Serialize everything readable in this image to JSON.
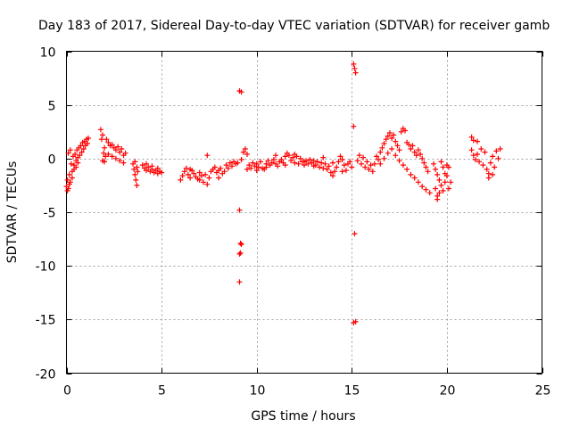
{
  "chart_data": {
    "type": "scatter",
    "title": "Day 183 of 2017, Sidereal Day-to-day VTEC variation (SDTVAR) for receiver gamb",
    "xlabel": "GPS time / hours",
    "ylabel": "SDTVAR / TECUs",
    "xlim": [
      0,
      25
    ],
    "ylim": [
      -20,
      10
    ],
    "x_ticks": [
      0,
      5,
      10,
      15,
      20,
      25
    ],
    "y_ticks": [
      -20,
      -15,
      -10,
      -5,
      0,
      5,
      10
    ],
    "x_tick_labels": [
      "0",
      "5",
      "10",
      "15",
      "20",
      "25"
    ],
    "y_tick_labels": [
      "-20",
      "-15",
      "-10",
      "-5",
      "0",
      "5",
      "10"
    ],
    "grid": true,
    "marker": "+",
    "marker_color": "#ff0000",
    "series": [
      {
        "name": "SDTVAR",
        "points": [
          [
            0.0,
            -2.6
          ],
          [
            0.05,
            -2.0
          ],
          [
            0.1,
            -2.8
          ],
          [
            0.15,
            -1.5
          ],
          [
            0.2,
            -2.2
          ],
          [
            0.25,
            -0.5
          ],
          [
            0.3,
            -1.2
          ],
          [
            0.35,
            0.2
          ],
          [
            0.4,
            -0.6
          ],
          [
            0.45,
            0.4
          ],
          [
            0.5,
            -0.2
          ],
          [
            0.55,
            0.8
          ],
          [
            0.6,
            0.1
          ],
          [
            0.65,
            1.0
          ],
          [
            0.7,
            0.3
          ],
          [
            0.75,
            1.2
          ],
          [
            0.8,
            0.6
          ],
          [
            0.85,
            1.5
          ],
          [
            0.9,
            0.9
          ],
          [
            0.95,
            1.6
          ],
          [
            1.0,
            1.2
          ],
          [
            1.05,
            1.8
          ],
          [
            1.1,
            1.4
          ],
          [
            1.15,
            1.9
          ],
          [
            0.1,
            0.5
          ],
          [
            0.2,
            0.8
          ],
          [
            0.3,
            -1.8
          ],
          [
            0.4,
            -1.0
          ],
          [
            0.5,
            -0.8
          ],
          [
            0.6,
            -0.4
          ],
          [
            0.05,
            -3.0
          ],
          [
            0.15,
            -2.4
          ],
          [
            1.8,
            2.7
          ],
          [
            1.85,
            1.8
          ],
          [
            1.9,
            2.2
          ],
          [
            1.95,
            0.5
          ],
          [
            2.0,
            1.0
          ],
          [
            2.05,
            0.2
          ],
          [
            2.1,
            1.8
          ],
          [
            2.2,
            1.5
          ],
          [
            2.3,
            1.2
          ],
          [
            2.4,
            1.3
          ],
          [
            2.5,
            1.0
          ],
          [
            2.6,
            0.8
          ],
          [
            2.7,
            1.1
          ],
          [
            2.8,
            0.6
          ],
          [
            2.9,
            0.9
          ],
          [
            3.0,
            0.3
          ],
          [
            3.1,
            0.5
          ],
          [
            1.9,
            -0.2
          ],
          [
            2.0,
            -0.3
          ],
          [
            2.2,
            0.4
          ],
          [
            2.4,
            0.2
          ],
          [
            2.6,
            0.0
          ],
          [
            2.8,
            -0.2
          ],
          [
            3.0,
            -0.4
          ],
          [
            3.5,
            -0.5
          ],
          [
            3.55,
            -1.0
          ],
          [
            3.6,
            -1.5
          ],
          [
            3.65,
            -2.0
          ],
          [
            3.7,
            -2.5
          ],
          [
            3.75,
            -1.2
          ],
          [
            3.6,
            -0.3
          ],
          [
            3.7,
            -0.8
          ],
          [
            4.0,
            -0.6
          ],
          [
            4.1,
            -0.9
          ],
          [
            4.2,
            -1.1
          ],
          [
            4.3,
            -0.8
          ],
          [
            4.4,
            -1.2
          ],
          [
            4.5,
            -1.0
          ],
          [
            4.6,
            -1.3
          ],
          [
            4.7,
            -1.1
          ],
          [
            4.8,
            -1.4
          ],
          [
            4.9,
            -1.2
          ],
          [
            5.0,
            -1.3
          ],
          [
            4.2,
            -0.5
          ],
          [
            4.5,
            -0.7
          ],
          [
            4.8,
            -0.9
          ],
          [
            6.0,
            -2.0
          ],
          [
            6.1,
            -1.6
          ],
          [
            6.2,
            -1.2
          ],
          [
            6.3,
            -0.9
          ],
          [
            6.4,
            -1.5
          ],
          [
            6.5,
            -1.8
          ],
          [
            6.6,
            -1.1
          ],
          [
            6.7,
            -1.4
          ],
          [
            6.8,
            -1.7
          ],
          [
            6.9,
            -1.9
          ],
          [
            7.0,
            -1.3
          ],
          [
            7.1,
            -1.6
          ],
          [
            7.2,
            -2.2
          ],
          [
            7.3,
            -1.5
          ],
          [
            7.4,
            -2.4
          ],
          [
            7.5,
            -1.8
          ],
          [
            7.6,
            -1.2
          ],
          [
            7.7,
            -1.0
          ],
          [
            7.8,
            -0.8
          ],
          [
            7.9,
            -1.3
          ],
          [
            8.0,
            -1.1
          ],
          [
            8.1,
            -0.9
          ],
          [
            8.2,
            -1.4
          ],
          [
            8.3,
            -1.2
          ],
          [
            8.4,
            -0.6
          ],
          [
            8.5,
            -0.9
          ],
          [
            8.6,
            -0.4
          ],
          [
            8.7,
            -0.7
          ],
          [
            8.8,
            -0.3
          ],
          [
            8.9,
            -0.5
          ],
          [
            9.0,
            -0.4
          ],
          [
            7.4,
            0.3
          ],
          [
            6.5,
            -1.0
          ],
          [
            7.0,
            -2.0
          ],
          [
            8.0,
            -1.8
          ],
          [
            9.1,
            6.3
          ],
          [
            9.2,
            6.2
          ],
          [
            9.1,
            -4.8
          ],
          [
            9.15,
            -7.9
          ],
          [
            9.2,
            -8.0
          ],
          [
            9.1,
            -8.9
          ],
          [
            9.15,
            -8.8
          ],
          [
            9.1,
            -11.5
          ],
          [
            9.2,
            -0.1
          ],
          [
            9.3,
            0.6
          ],
          [
            9.4,
            0.9
          ],
          [
            9.5,
            0.4
          ],
          [
            9.6,
            -0.6
          ],
          [
            9.7,
            -0.9
          ],
          [
            9.8,
            -0.4
          ],
          [
            9.9,
            -0.7
          ],
          [
            10.0,
            -1.1
          ],
          [
            10.1,
            -0.8
          ],
          [
            10.2,
            -0.3
          ],
          [
            10.3,
            -0.9
          ],
          [
            10.4,
            -1.0
          ],
          [
            10.5,
            -0.5
          ],
          [
            10.6,
            -0.2
          ],
          [
            10.7,
            -0.6
          ],
          [
            10.8,
            -0.4
          ],
          [
            10.9,
            -0.1
          ],
          [
            11.0,
            -0.5
          ],
          [
            11.1,
            -0.7
          ],
          [
            11.2,
            -0.3
          ],
          [
            11.3,
            -0.1
          ],
          [
            11.4,
            -0.4
          ],
          [
            11.5,
            0.2
          ],
          [
            11.6,
            0.5
          ],
          [
            11.7,
            0.3
          ],
          [
            11.8,
            -0.2
          ],
          [
            11.9,
            0.1
          ],
          [
            12.0,
            -0.4
          ],
          [
            12.1,
            0.2
          ],
          [
            12.2,
            -0.5
          ],
          [
            12.3,
            0.0
          ],
          [
            12.4,
            -0.3
          ],
          [
            12.5,
            -0.6
          ],
          [
            12.6,
            -0.2
          ],
          [
            12.7,
            -0.5
          ],
          [
            12.8,
            -0.1
          ],
          [
            12.9,
            -0.4
          ],
          [
            13.0,
            -0.2
          ],
          [
            13.1,
            -0.6
          ],
          [
            13.2,
            -0.3
          ],
          [
            13.3,
            -0.8
          ],
          [
            13.4,
            -0.4
          ],
          [
            13.5,
            0.1
          ],
          [
            13.6,
            -0.5
          ],
          [
            13.7,
            -1.0
          ],
          [
            13.8,
            -0.7
          ],
          [
            13.9,
            -1.3
          ],
          [
            14.0,
            -1.6
          ],
          [
            14.1,
            -1.2
          ],
          [
            14.2,
            -0.8
          ],
          [
            14.3,
            -0.3
          ],
          [
            14.4,
            0.2
          ],
          [
            14.5,
            -0.1
          ],
          [
            14.6,
            -0.6
          ],
          [
            14.7,
            -1.1
          ],
          [
            14.8,
            -0.5
          ],
          [
            14.9,
            -0.3
          ],
          [
            15.0,
            -0.8
          ],
          [
            9.5,
            -1.0
          ],
          [
            10.0,
            -0.5
          ],
          [
            10.5,
            -0.8
          ],
          [
            11.0,
            0.3
          ],
          [
            11.5,
            -0.6
          ],
          [
            12.0,
            0.4
          ],
          [
            12.5,
            -0.3
          ],
          [
            13.0,
            -0.7
          ],
          [
            13.5,
            -0.9
          ],
          [
            14.0,
            -0.4
          ],
          [
            14.5,
            -1.2
          ],
          [
            15.1,
            8.8
          ],
          [
            15.15,
            8.4
          ],
          [
            15.2,
            8.0
          ],
          [
            15.1,
            3.0
          ],
          [
            15.15,
            -7.0
          ],
          [
            15.1,
            -15.3
          ],
          [
            15.2,
            -15.2
          ],
          [
            15.3,
            -0.2
          ],
          [
            15.4,
            0.3
          ],
          [
            15.5,
            -0.5
          ],
          [
            15.6,
            0.1
          ],
          [
            15.7,
            -0.8
          ],
          [
            15.8,
            -0.3
          ],
          [
            15.9,
            -1.0
          ],
          [
            16.0,
            -0.6
          ],
          [
            16.1,
            -1.2
          ],
          [
            16.2,
            -0.5
          ],
          [
            16.3,
            0.2
          ],
          [
            16.4,
            -0.1
          ],
          [
            16.5,
            0.6
          ],
          [
            16.6,
            1.0
          ],
          [
            16.7,
            1.4
          ],
          [
            16.8,
            1.8
          ],
          [
            16.9,
            2.1
          ],
          [
            17.0,
            2.4
          ],
          [
            17.1,
            1.9
          ],
          [
            17.2,
            2.2
          ],
          [
            17.3,
            1.6
          ],
          [
            17.4,
            1.2
          ],
          [
            17.5,
            0.8
          ],
          [
            17.6,
            2.5
          ],
          [
            17.7,
            2.8
          ],
          [
            17.8,
            2.6
          ],
          [
            17.9,
            1.5
          ],
          [
            18.0,
            1.3
          ],
          [
            18.1,
            0.9
          ],
          [
            18.2,
            1.2
          ],
          [
            18.3,
            0.6
          ],
          [
            18.4,
            0.3
          ],
          [
            18.5,
            0.8
          ],
          [
            18.6,
            0.4
          ],
          [
            18.7,
            0.0
          ],
          [
            18.8,
            -0.4
          ],
          [
            18.9,
            -0.8
          ],
          [
            19.0,
            -1.2
          ],
          [
            16.5,
            -0.5
          ],
          [
            16.7,
            0.0
          ],
          [
            16.9,
            0.5
          ],
          [
            17.1,
            0.9
          ],
          [
            17.3,
            0.3
          ],
          [
            17.5,
            -0.2
          ],
          [
            17.7,
            -0.6
          ],
          [
            17.9,
            -1.0
          ],
          [
            18.1,
            -1.5
          ],
          [
            18.3,
            -1.8
          ],
          [
            18.5,
            -2.2
          ],
          [
            18.7,
            -2.6
          ],
          [
            18.9,
            -2.9
          ],
          [
            19.1,
            -3.2
          ],
          [
            19.3,
            -0.5
          ],
          [
            19.4,
            -1.0
          ],
          [
            19.5,
            -1.5
          ],
          [
            19.6,
            -2.0
          ],
          [
            19.7,
            -2.5
          ],
          [
            19.8,
            -3.0
          ],
          [
            19.9,
            -2.2
          ],
          [
            20.0,
            -1.6
          ],
          [
            20.1,
            -0.8
          ],
          [
            19.5,
            -3.5
          ],
          [
            19.6,
            -3.2
          ],
          [
            19.7,
            -0.3
          ],
          [
            19.8,
            -0.8
          ],
          [
            19.9,
            -1.4
          ],
          [
            20.0,
            -0.6
          ],
          [
            20.1,
            -2.8
          ],
          [
            20.2,
            -2.2
          ],
          [
            19.4,
            -2.8
          ],
          [
            19.5,
            -3.8
          ],
          [
            21.3,
            2.0
          ],
          [
            21.4,
            1.7
          ],
          [
            21.3,
            0.8
          ],
          [
            21.4,
            0.3
          ],
          [
            21.5,
            -0.1
          ],
          [
            21.6,
            0.4
          ],
          [
            21.7,
            -0.3
          ],
          [
            21.8,
            0.9
          ],
          [
            21.9,
            -0.6
          ],
          [
            22.0,
            0.6
          ],
          [
            22.1,
            -1.0
          ],
          [
            22.2,
            -1.4
          ],
          [
            22.3,
            -0.4
          ],
          [
            22.4,
            0.2
          ],
          [
            22.5,
            -0.8
          ],
          [
            22.6,
            0.7
          ],
          [
            22.7,
            0.0
          ],
          [
            22.8,
            0.9
          ],
          [
            21.6,
            1.6
          ],
          [
            22.2,
            -1.8
          ],
          [
            22.4,
            -1.5
          ]
        ]
      }
    ]
  }
}
